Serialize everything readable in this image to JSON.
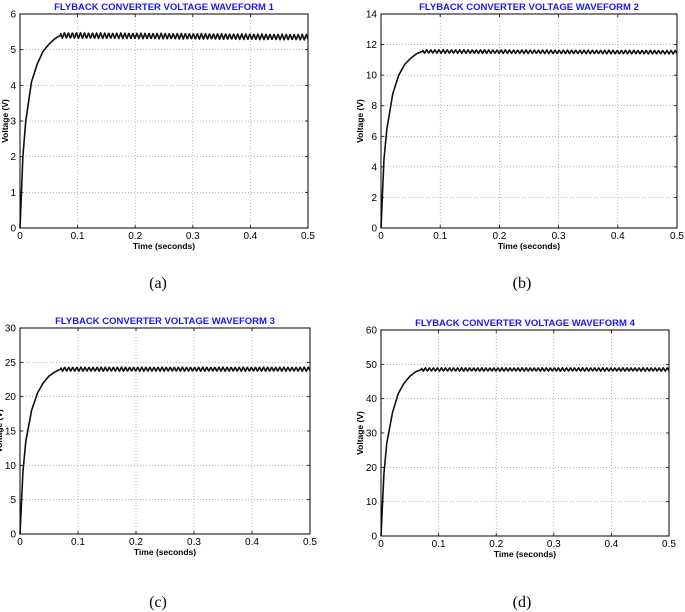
{
  "chart_data": [
    {
      "type": "line",
      "panel_label": "(a)",
      "title": "FLYBACK CONVERTER VOLTAGE WAVEFORM 1",
      "xlabel": "Time (seconds)",
      "ylabel": "Voltage (V)",
      "xlim": [
        0,
        0.5
      ],
      "ylim": [
        0,
        6
      ],
      "xticks": [
        0,
        0.1,
        0.2,
        0.3,
        0.4,
        0.5
      ],
      "xtick_labels": [
        "0",
        "0.1",
        "0.2",
        "0.3",
        "0.4",
        "0.5"
      ],
      "yticks": [
        0,
        1,
        2,
        3,
        4,
        5,
        6
      ],
      "ytick_labels": [
        "0",
        "1",
        "2",
        "3",
        "4",
        "5",
        "6"
      ],
      "grid": true,
      "series": [
        {
          "x": [
            0,
            0.005,
            0.01,
            0.02,
            0.03,
            0.04,
            0.05,
            0.06,
            0.07,
            0.5
          ],
          "y": [
            0,
            2.0,
            3.0,
            4.1,
            4.6,
            4.95,
            5.15,
            5.3,
            5.4,
            5.35
          ],
          "ripple_amplitude": 0.08,
          "ripple_period": 0.007
        }
      ]
    },
    {
      "type": "line",
      "panel_label": "(b)",
      "title": "FLYBACK CONVERTER VOLTAGE WAVEFORM 2",
      "xlabel": "Time (seconds)",
      "ylabel": "Voltage (V)",
      "xlim": [
        0,
        0.5
      ],
      "ylim": [
        0,
        14
      ],
      "xticks": [
        0,
        0.1,
        0.2,
        0.3,
        0.4,
        0.5
      ],
      "xtick_labels": [
        "0",
        "0.1",
        "0.2",
        "0.3",
        "0.4",
        "0.5"
      ],
      "yticks": [
        0,
        2,
        4,
        6,
        8,
        10,
        12,
        14
      ],
      "ytick_labels": [
        "0",
        "2",
        "4",
        "6",
        "8",
        "10",
        "12",
        "14"
      ],
      "grid": true,
      "series": [
        {
          "x": [
            0,
            0.005,
            0.01,
            0.02,
            0.03,
            0.04,
            0.05,
            0.06,
            0.07,
            0.5
          ],
          "y": [
            0,
            4.5,
            6.5,
            8.8,
            10.0,
            10.7,
            11.1,
            11.4,
            11.55,
            11.5
          ],
          "ripple_amplitude": 0.12,
          "ripple_period": 0.007
        }
      ]
    },
    {
      "type": "line",
      "panel_label": "(c)",
      "title": "FLYBACK CONVERTER VOLTAGE WAVEFORM 3",
      "xlabel": "Time (seconds)",
      "ylabel": "Voltage (V)",
      "xlim": [
        0,
        0.5
      ],
      "ylim": [
        0,
        30
      ],
      "xticks": [
        0,
        0.1,
        0.2,
        0.3,
        0.4,
        0.5
      ],
      "xtick_labels": [
        "0",
        "0.1",
        "0.2",
        "0.3",
        "0.4",
        "0.5"
      ],
      "yticks": [
        0,
        5,
        10,
        15,
        20,
        25,
        30
      ],
      "ytick_labels": [
        "0",
        "5",
        "10",
        "15",
        "20",
        "25",
        "30"
      ],
      "grid": true,
      "series": [
        {
          "x": [
            0,
            0.005,
            0.01,
            0.02,
            0.03,
            0.04,
            0.05,
            0.06,
            0.07,
            0.5
          ],
          "y": [
            0,
            9.0,
            13.5,
            18.0,
            20.5,
            22.0,
            23.0,
            23.6,
            24.0,
            24.0
          ],
          "ripple_amplitude": 0.3,
          "ripple_period": 0.007
        }
      ]
    },
    {
      "type": "line",
      "panel_label": "(d)",
      "title": "FLYBACK CONVERTER VOLTAGE WAVEFORM 4",
      "xlabel": "Time (seconds)",
      "ylabel": "Voltage (V)",
      "xlim": [
        0,
        0.5
      ],
      "ylim": [
        0,
        60
      ],
      "xticks": [
        0,
        0.1,
        0.2,
        0.3,
        0.4,
        0.5
      ],
      "xtick_labels": [
        "0",
        "0.1",
        "0.2",
        "0.3",
        "0.4",
        "0.5"
      ],
      "yticks": [
        0,
        10,
        20,
        30,
        40,
        50,
        60
      ],
      "ytick_labels": [
        "0",
        "10",
        "20",
        "30",
        "40",
        "50",
        "60"
      ],
      "grid": true,
      "series": [
        {
          "x": [
            0,
            0.005,
            0.01,
            0.02,
            0.03,
            0.04,
            0.05,
            0.06,
            0.07,
            0.5
          ],
          "y": [
            0,
            18.0,
            27.0,
            36.0,
            41.5,
            44.5,
            46.5,
            47.8,
            48.5,
            48.5
          ],
          "ripple_amplitude": 0.5,
          "ripple_period": 0.007
        }
      ]
    }
  ]
}
